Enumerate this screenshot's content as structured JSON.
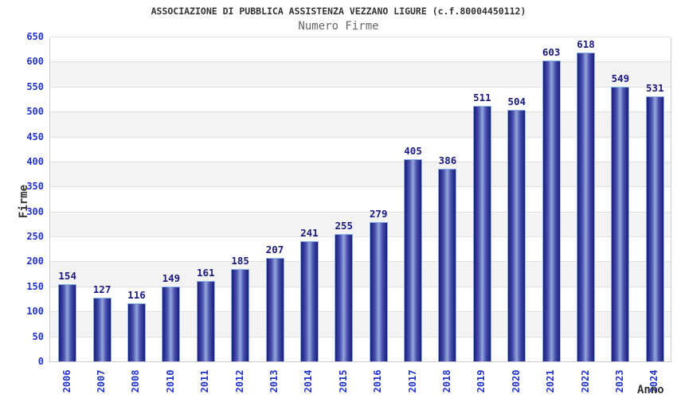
{
  "chart_data": {
    "type": "bar",
    "title": "ASSOCIAZIONE DI PUBBLICA ASSISTENZA VEZZANO LIGURE (c.f.80004450112)",
    "subtitle": "Numero Firme",
    "xlabel": "Anno",
    "ylabel": "Firme",
    "categories": [
      "2006",
      "2007",
      "2008",
      "2010",
      "2011",
      "2012",
      "2013",
      "2014",
      "2015",
      "2016",
      "2017",
      "2018",
      "2019",
      "2020",
      "2021",
      "2022",
      "2023",
      "2024"
    ],
    "values": [
      154,
      127,
      116,
      149,
      161,
      185,
      207,
      241,
      255,
      279,
      405,
      386,
      511,
      504,
      603,
      618,
      549,
      531
    ],
    "ylim": [
      0,
      650
    ],
    "ytick_step": 50,
    "grid": true,
    "grid_bands_alternating": true,
    "legend_position": "none",
    "colors": {
      "title": "#333333",
      "subtitle": "#666666",
      "axis_tick_label": "#2233cc",
      "value_label": "#1a1a80",
      "bar_edge_dark": "#1c1c78",
      "bar_center_light": "#98a5dd",
      "bar_border": "#8ab4e8",
      "band_gray": "#f3f3f3",
      "gridline": "#e0e0e0",
      "plot_border": "#cccccc"
    }
  }
}
